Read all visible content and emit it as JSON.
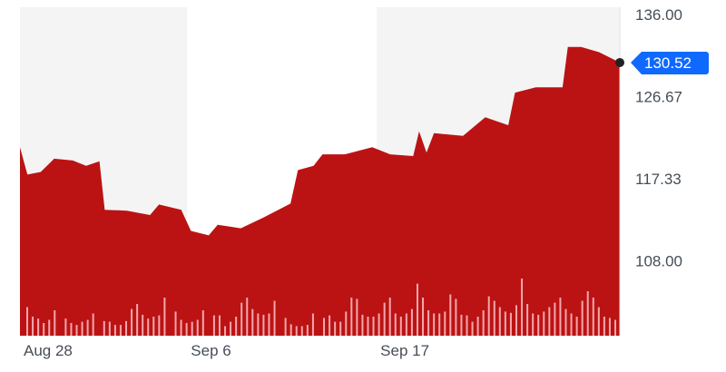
{
  "chart_data": {
    "type": "area",
    "title": "",
    "xlabel": "",
    "ylabel": "",
    "ylim": [
      99.5,
      136.8
    ],
    "y_ticks": [
      "136.00",
      "126.67",
      "117.33",
      "108.00"
    ],
    "x_ticks": [
      {
        "label": "Aug 28",
        "date": "Aug 28 00:00"
      },
      {
        "label": "Sep 6",
        "date": "Sep 6 09:00"
      },
      {
        "label": "Sep 17",
        "date": "Sep 17 00:00"
      }
    ],
    "grid": false,
    "shaded_periods": [
      [
        "Aug 28 00:00",
        "Sep 6 09:00"
      ],
      [
        "Sep 17 00:00",
        "Sep 30 15:00"
      ]
    ],
    "last_price": "130.52",
    "colors": {
      "area": "#bb1313",
      "volume": "#f3a7ad",
      "last_price_badge": "#0f69ff",
      "shade": "#f4f4f4"
    },
    "series": [
      {
        "type": "price",
        "points": [
          [
            "Aug 28 00:00",
            120.9
          ],
          [
            "Aug 28 10:00",
            117.8
          ],
          [
            "Aug 29 04:00",
            118.1
          ],
          [
            "Aug 29 22:00",
            119.6
          ],
          [
            "Aug 30 23:00",
            119.4
          ],
          [
            "Aug 31 17:00",
            118.8
          ],
          [
            "Sep 1 11:00",
            119.3
          ],
          [
            "Sep 1 18:00",
            113.8
          ],
          [
            "Sep 3 00:00",
            113.7
          ],
          [
            "Sep 4 07:00",
            113.2
          ],
          [
            "Sep 4 19:00",
            114.4
          ],
          [
            "Sep 6 01:00",
            113.8
          ],
          [
            "Sep 6 14:00",
            111.4
          ],
          [
            "Sep 7 14:00",
            110.9
          ],
          [
            "Sep 8 02:00",
            112.1
          ],
          [
            "Sep 9 09:00",
            111.7
          ],
          [
            "Sep 10 15:00",
            112.9
          ],
          [
            "Sep 12 04:00",
            114.5
          ],
          [
            "Sep 12 14:00",
            118.3
          ],
          [
            "Sep 13 11:00",
            118.8
          ],
          [
            "Sep 13 23:00",
            120.1
          ],
          [
            "Sep 15 05:00",
            120.1
          ],
          [
            "Sep 16 18:00",
            120.9
          ],
          [
            "Sep 17 18:00",
            120.1
          ],
          [
            "Sep 19 01:00",
            119.9
          ],
          [
            "Sep 19 09:00",
            122.7
          ],
          [
            "Sep 19 19:00",
            120.3
          ],
          [
            "Sep 20 05:00",
            122.5
          ],
          [
            "Sep 21 20:00",
            122.2
          ],
          [
            "Sep 23 02:00",
            124.3
          ],
          [
            "Sep 24 09:00",
            123.4
          ],
          [
            "Sep 24 18:00",
            127.1
          ],
          [
            "Sep 25 22:00",
            127.7
          ],
          [
            "Sep 27 10:00",
            127.7
          ],
          [
            "Sep 27 17:00",
            132.3
          ],
          [
            "Sep 28 11:00",
            132.3
          ],
          [
            "Sep 29 11:00",
            131.7
          ],
          [
            "Sep 30 15:00",
            130.52
          ]
        ]
      },
      {
        "type": "volume",
        "relative_values": [
          0.45,
          0.3,
          0.27,
          0.2,
          0.25,
          0.4,
          0,
          0.27,
          0.2,
          0.17,
          0.22,
          0.25,
          0.35,
          0,
          0.23,
          0.22,
          0.17,
          0.17,
          0.23,
          0.42,
          0.5,
          0.33,
          0.27,
          0.3,
          0.32,
          0.6,
          0,
          0.38,
          0.25,
          0.2,
          0.22,
          0.25,
          0.4,
          0,
          0.32,
          0.32,
          0.15,
          0.22,
          0.3,
          0.52,
          0.6,
          0.42,
          0.35,
          0.33,
          0.35,
          0.55,
          0,
          0.28,
          0.18,
          0.15,
          0.15,
          0.17,
          0.35,
          0,
          0.28,
          0.32,
          0.22,
          0.22,
          0.38,
          0.6,
          0.58,
          0.33,
          0.3,
          0.3,
          0.35,
          0.52,
          0.6,
          0.35,
          0.3,
          0.35,
          0.42,
          0.82,
          0.6,
          0.4,
          0.35,
          0.35,
          0.38,
          0.65,
          0.58,
          0.33,
          0.32,
          0.22,
          0.3,
          0.4,
          0.62,
          0.55,
          0.45,
          0.38,
          0.36,
          0.48,
          0.9,
          0.5,
          0.35,
          0.33,
          0.38,
          0.45,
          0.52,
          0.6,
          0.42,
          0.35,
          0.3,
          0.55,
          0.7,
          0.6,
          0.45,
          0.3,
          0.28,
          0.25
        ]
      }
    ]
  }
}
